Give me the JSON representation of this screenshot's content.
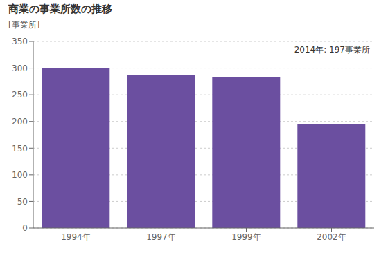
{
  "chart_data": {
    "type": "bar",
    "title": "商業の事業所数の推移",
    "ylabel": "[事業所]",
    "annotation": "2014年: 197事業所",
    "categories": [
      "1994年",
      "1997年",
      "1999年",
      "2002年"
    ],
    "values": [
      300,
      287,
      283,
      195
    ],
    "color": "#6B4FA0",
    "ylim": [
      0,
      350
    ],
    "yticks": [
      0,
      50,
      100,
      150,
      200,
      250,
      300,
      350
    ],
    "grid": true
  }
}
